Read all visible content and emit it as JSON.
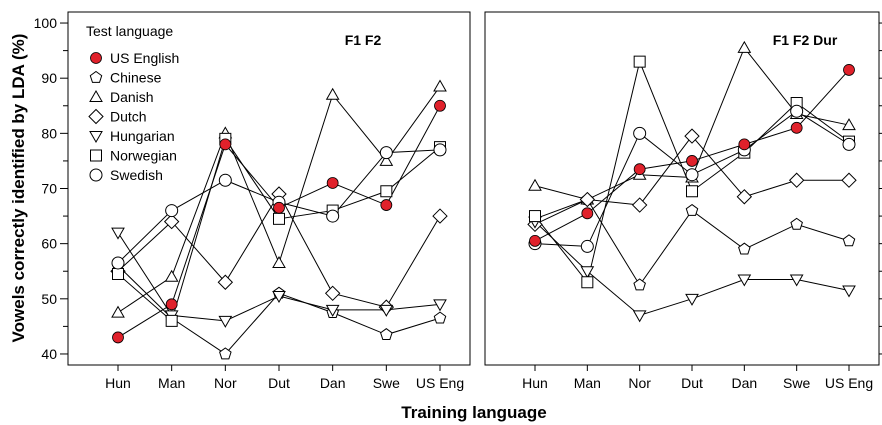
{
  "chart_data": {
    "type": "line",
    "xlabel": "Training language",
    "ylabel": "Vowels correctly identified by LDA (%)",
    "ylim": [
      38,
      102
    ],
    "yticks": [
      40,
      50,
      60,
      70,
      80,
      90,
      100
    ],
    "categories": [
      "Hun",
      "Man",
      "Nor",
      "Dut",
      "Dan",
      "Swe",
      "US Eng"
    ],
    "legend": {
      "title": "Test language",
      "position": "top-left",
      "items": [
        "US English",
        "Chinese",
        "Danish",
        "Dutch",
        "Hungarian",
        "Norwegian",
        "Swedish"
      ]
    },
    "panels": [
      {
        "title": "F1  F2",
        "series": [
          {
            "name": "US English",
            "marker": "filled-circle",
            "values": [
              43,
              49,
              78,
              66.5,
              71,
              67,
              85
            ]
          },
          {
            "name": "Chinese",
            "marker": "pentagon",
            "values": [
              56,
              46.5,
              40,
              51,
              47.5,
              43.5,
              46.5
            ]
          },
          {
            "name": "Danish",
            "marker": "triangle-up",
            "values": [
              47.5,
              54,
              80,
              56.5,
              87,
              75,
              88.5
            ]
          },
          {
            "name": "Dutch",
            "marker": "diamond",
            "values": [
              55,
              64,
              53,
              69,
              51,
              48.5,
              65
            ]
          },
          {
            "name": "Hungarian",
            "marker": "triangle-down",
            "values": [
              62,
              47,
              46,
              50.5,
              48,
              48,
              49
            ]
          },
          {
            "name": "Norwegian",
            "marker": "square",
            "values": [
              54.5,
              46,
              79,
              64.5,
              66,
              69.5,
              77.5
            ]
          },
          {
            "name": "Swedish",
            "marker": "open-circle",
            "values": [
              56.5,
              66,
              71.5,
              67.5,
              65,
              76.5,
              77
            ]
          }
        ]
      },
      {
        "title": "F1  F2  Dur",
        "series": [
          {
            "name": "US English",
            "marker": "filled-circle",
            "values": [
              60.5,
              65.5,
              73.5,
              75,
              78,
              81,
              91.5
            ]
          },
          {
            "name": "Chinese",
            "marker": "pentagon",
            "values": [
              64.5,
              68,
              52.5,
              66,
              59,
              63.5,
              60.5
            ]
          },
          {
            "name": "Danish",
            "marker": "triangle-up",
            "values": [
              70.5,
              68,
              72.5,
              72,
              95.5,
              83.5,
              81.5
            ]
          },
          {
            "name": "Dutch",
            "marker": "diamond",
            "values": [
              63.5,
              68,
              67,
              79.5,
              68.5,
              71.5,
              71.5
            ]
          },
          {
            "name": "Hungarian",
            "marker": "triangle-down",
            "values": [
              64,
              55,
              47,
              50,
              53.5,
              53.5,
              51.5
            ]
          },
          {
            "name": "Norwegian",
            "marker": "square",
            "values": [
              65,
              53,
              93,
              69.5,
              76.5,
              85.5,
              78.5
            ]
          },
          {
            "name": "Swedish",
            "marker": "open-circle",
            "values": [
              60,
              59.5,
              80,
              72.5,
              77,
              84,
              78
            ]
          }
        ]
      }
    ],
    "colors": {
      "filled_marker": "#e0212b",
      "stroke": "#000000",
      "background": "#ffffff"
    }
  }
}
